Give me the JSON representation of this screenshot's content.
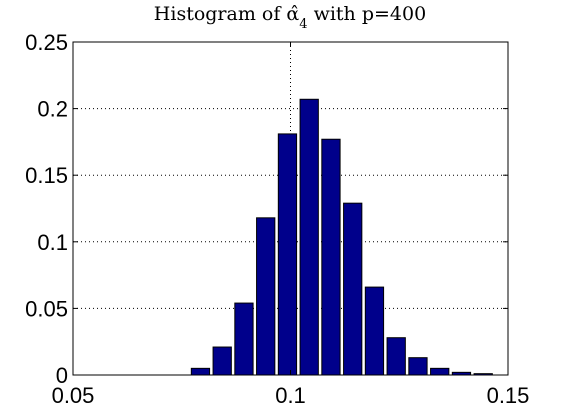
{
  "chart_data": {
    "type": "bar",
    "title_prefix": "Histogram of ",
    "title_symbol": "α̂",
    "title_subscript": "4",
    "title_suffix": " with p=400",
    "xlabel": "",
    "ylabel": "",
    "xlim": [
      0.05,
      0.15
    ],
    "ylim": [
      0,
      0.25
    ],
    "x_ticks": [
      0.05,
      0.1,
      0.15
    ],
    "x_tick_labels": [
      "0.05",
      "0.1",
      "0.15"
    ],
    "y_ticks": [
      0,
      0.05,
      0.1,
      0.15,
      0.2,
      0.25
    ],
    "y_tick_labels": [
      "0",
      "0.05",
      "0.1",
      "0.15",
      "0.2",
      "0.25"
    ],
    "grid": "dotted",
    "bar_color": "#00008B",
    "bar_width": 0.0042,
    "x": [
      0.0793,
      0.0843,
      0.0893,
      0.0943,
      0.0993,
      0.1043,
      0.1093,
      0.1143,
      0.1193,
      0.1243,
      0.1293,
      0.1343,
      0.1393,
      0.1443
    ],
    "values": [
      0.005,
      0.021,
      0.054,
      0.118,
      0.181,
      0.207,
      0.177,
      0.129,
      0.066,
      0.028,
      0.013,
      0.005,
      0.002,
      0.001
    ]
  }
}
